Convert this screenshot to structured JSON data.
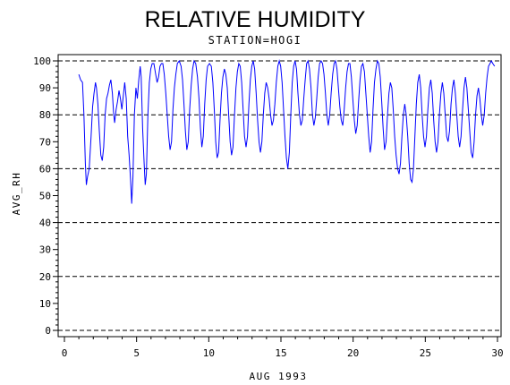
{
  "chart_data": {
    "type": "line",
    "title": "RELATIVE HUMIDITY",
    "subtitle": "STATION=HOGI",
    "xlabel": "AUG 1993",
    "ylabel": "AVG_RH",
    "xlim": [
      0,
      30
    ],
    "ylim": [
      0,
      100
    ],
    "xticks": [
      0,
      5,
      10,
      15,
      20,
      25,
      30
    ],
    "yticks": [
      0,
      10,
      20,
      30,
      40,
      50,
      60,
      70,
      80,
      90,
      100
    ],
    "reference_lines": [
      0,
      20,
      40,
      60,
      80,
      100
    ],
    "line_color": "#0000ff",
    "series": [
      {
        "values": [
          [
            1.0,
            95
          ],
          [
            1.12,
            93
          ],
          [
            1.25,
            92
          ],
          [
            1.35,
            80
          ],
          [
            1.45,
            62
          ],
          [
            1.52,
            54
          ],
          [
            1.6,
            57
          ],
          [
            1.72,
            60
          ],
          [
            1.85,
            72
          ],
          [
            1.95,
            83
          ],
          [
            2.05,
            88
          ],
          [
            2.15,
            92
          ],
          [
            2.22,
            90
          ],
          [
            2.32,
            84
          ],
          [
            2.42,
            74
          ],
          [
            2.52,
            65
          ],
          [
            2.62,
            63
          ],
          [
            2.72,
            68
          ],
          [
            2.82,
            80
          ],
          [
            2.92,
            86
          ],
          [
            3.02,
            88
          ],
          [
            3.12,
            91
          ],
          [
            3.22,
            93
          ],
          [
            3.32,
            88
          ],
          [
            3.4,
            81
          ],
          [
            3.48,
            77
          ],
          [
            3.58,
            82
          ],
          [
            3.68,
            85
          ],
          [
            3.78,
            89
          ],
          [
            3.88,
            86
          ],
          [
            3.98,
            82
          ],
          [
            4.08,
            87
          ],
          [
            4.18,
            92
          ],
          [
            4.28,
            86
          ],
          [
            4.38,
            72
          ],
          [
            4.48,
            65
          ],
          [
            4.58,
            56
          ],
          [
            4.66,
            47
          ],
          [
            4.75,
            57
          ],
          [
            4.85,
            80
          ],
          [
            4.95,
            90
          ],
          [
            5.05,
            86
          ],
          [
            5.15,
            93
          ],
          [
            5.25,
            98
          ],
          [
            5.32,
            94
          ],
          [
            5.42,
            75
          ],
          [
            5.52,
            62
          ],
          [
            5.6,
            54
          ],
          [
            5.68,
            58
          ],
          [
            5.78,
            80
          ],
          [
            5.88,
            92
          ],
          [
            5.98,
            97
          ],
          [
            6.08,
            99
          ],
          [
            6.2,
            99
          ],
          [
            6.32,
            95
          ],
          [
            6.42,
            92
          ],
          [
            6.52,
            94
          ],
          [
            6.62,
            98
          ],
          [
            6.72,
            99
          ],
          [
            6.82,
            99
          ],
          [
            6.92,
            95
          ],
          [
            7.02,
            88
          ],
          [
            7.12,
            80
          ],
          [
            7.22,
            72
          ],
          [
            7.32,
            67
          ],
          [
            7.42,
            70
          ],
          [
            7.52,
            82
          ],
          [
            7.62,
            90
          ],
          [
            7.72,
            95
          ],
          [
            7.82,
            99
          ],
          [
            7.95,
            100
          ],
          [
            8.08,
            98
          ],
          [
            8.18,
            93
          ],
          [
            8.28,
            84
          ],
          [
            8.38,
            74
          ],
          [
            8.48,
            67
          ],
          [
            8.58,
            70
          ],
          [
            8.68,
            82
          ],
          [
            8.78,
            91
          ],
          [
            8.88,
            97
          ],
          [
            8.98,
            100
          ],
          [
            9.1,
            99
          ],
          [
            9.22,
            94
          ],
          [
            9.32,
            86
          ],
          [
            9.42,
            75
          ],
          [
            9.52,
            68
          ],
          [
            9.62,
            72
          ],
          [
            9.72,
            84
          ],
          [
            9.82,
            93
          ],
          [
            9.92,
            98
          ],
          [
            10.05,
            99
          ],
          [
            10.18,
            98
          ],
          [
            10.28,
            92
          ],
          [
            10.38,
            82
          ],
          [
            10.48,
            70
          ],
          [
            10.58,
            64
          ],
          [
            10.68,
            66
          ],
          [
            10.78,
            78
          ],
          [
            10.88,
            88
          ],
          [
            10.98,
            94
          ],
          [
            11.08,
            97
          ],
          [
            11.18,
            95
          ],
          [
            11.28,
            90
          ],
          [
            11.38,
            80
          ],
          [
            11.48,
            70
          ],
          [
            11.58,
            65
          ],
          [
            11.68,
            68
          ],
          [
            11.78,
            80
          ],
          [
            11.88,
            90
          ],
          [
            11.98,
            96
          ],
          [
            12.08,
            99
          ],
          [
            12.18,
            98
          ],
          [
            12.28,
            92
          ],
          [
            12.38,
            82
          ],
          [
            12.48,
            72
          ],
          [
            12.58,
            68
          ],
          [
            12.68,
            72
          ],
          [
            12.78,
            84
          ],
          [
            12.88,
            93
          ],
          [
            12.98,
            98
          ],
          [
            13.08,
            100
          ],
          [
            13.18,
            97
          ],
          [
            13.28,
            88
          ],
          [
            13.38,
            78
          ],
          [
            13.48,
            70
          ],
          [
            13.58,
            66
          ],
          [
            13.68,
            70
          ],
          [
            13.78,
            80
          ],
          [
            13.88,
            88
          ],
          [
            13.98,
            92
          ],
          [
            14.08,
            90
          ],
          [
            14.18,
            86
          ],
          [
            14.28,
            80
          ],
          [
            14.38,
            76
          ],
          [
            14.48,
            78
          ],
          [
            14.58,
            84
          ],
          [
            14.68,
            92
          ],
          [
            14.78,
            98
          ],
          [
            14.88,
            100
          ],
          [
            14.98,
            98
          ],
          [
            15.08,
            92
          ],
          [
            15.18,
            82
          ],
          [
            15.28,
            72
          ],
          [
            15.38,
            64
          ],
          [
            15.48,
            60
          ],
          [
            15.58,
            66
          ],
          [
            15.68,
            80
          ],
          [
            15.78,
            92
          ],
          [
            15.88,
            98
          ],
          [
            15.98,
            100
          ],
          [
            16.08,
            97
          ],
          [
            16.18,
            88
          ],
          [
            16.28,
            80
          ],
          [
            16.38,
            76
          ],
          [
            16.48,
            78
          ],
          [
            16.58,
            86
          ],
          [
            16.68,
            93
          ],
          [
            16.78,
            99
          ],
          [
            16.88,
            100
          ],
          [
            16.98,
            97
          ],
          [
            17.08,
            90
          ],
          [
            17.18,
            80
          ],
          [
            17.28,
            76
          ],
          [
            17.38,
            79
          ],
          [
            17.48,
            86
          ],
          [
            17.58,
            94
          ],
          [
            17.68,
            99
          ],
          [
            17.78,
            100
          ],
          [
            17.88,
            99
          ],
          [
            17.98,
            95
          ],
          [
            18.08,
            88
          ],
          [
            18.18,
            80
          ],
          [
            18.28,
            76
          ],
          [
            18.38,
            80
          ],
          [
            18.48,
            88
          ],
          [
            18.58,
            95
          ],
          [
            18.68,
            99
          ],
          [
            18.78,
            100
          ],
          [
            18.88,
            97
          ],
          [
            18.98,
            90
          ],
          [
            19.08,
            83
          ],
          [
            19.18,
            78
          ],
          [
            19.28,
            76
          ],
          [
            19.38,
            82
          ],
          [
            19.48,
            90
          ],
          [
            19.58,
            96
          ],
          [
            19.68,
            99
          ],
          [
            19.78,
            99
          ],
          [
            19.88,
            94
          ],
          [
            19.98,
            86
          ],
          [
            20.08,
            78
          ],
          [
            20.18,
            73
          ],
          [
            20.28,
            76
          ],
          [
            20.38,
            85
          ],
          [
            20.48,
            93
          ],
          [
            20.58,
            98
          ],
          [
            20.68,
            99
          ],
          [
            20.78,
            96
          ],
          [
            20.88,
            88
          ],
          [
            20.98,
            80
          ],
          [
            21.08,
            72
          ],
          [
            21.18,
            66
          ],
          [
            21.28,
            70
          ],
          [
            21.38,
            82
          ],
          [
            21.48,
            92
          ],
          [
            21.58,
            97
          ],
          [
            21.68,
            100
          ],
          [
            21.78,
            99
          ],
          [
            21.88,
            94
          ],
          [
            21.98,
            85
          ],
          [
            22.08,
            75
          ],
          [
            22.18,
            67
          ],
          [
            22.28,
            70
          ],
          [
            22.38,
            80
          ],
          [
            22.48,
            88
          ],
          [
            22.58,
            92
          ],
          [
            22.68,
            90
          ],
          [
            22.78,
            82
          ],
          [
            22.88,
            72
          ],
          [
            22.98,
            65
          ],
          [
            23.08,
            60
          ],
          [
            23.18,
            58
          ],
          [
            23.28,
            62
          ],
          [
            23.38,
            72
          ],
          [
            23.48,
            80
          ],
          [
            23.58,
            84
          ],
          [
            23.68,
            80
          ],
          [
            23.78,
            72
          ],
          [
            23.88,
            62
          ],
          [
            23.98,
            56
          ],
          [
            24.08,
            55
          ],
          [
            24.18,
            60
          ],
          [
            24.28,
            72
          ],
          [
            24.38,
            84
          ],
          [
            24.48,
            92
          ],
          [
            24.58,
            95
          ],
          [
            24.68,
            90
          ],
          [
            24.78,
            80
          ],
          [
            24.88,
            72
          ],
          [
            24.98,
            68
          ],
          [
            25.08,
            72
          ],
          [
            25.18,
            82
          ],
          [
            25.28,
            90
          ],
          [
            25.38,
            93
          ],
          [
            25.48,
            88
          ],
          [
            25.58,
            78
          ],
          [
            25.68,
            70
          ],
          [
            25.78,
            66
          ],
          [
            25.88,
            70
          ],
          [
            25.98,
            80
          ],
          [
            26.08,
            88
          ],
          [
            26.18,
            92
          ],
          [
            26.28,
            88
          ],
          [
            26.38,
            80
          ],
          [
            26.48,
            72
          ],
          [
            26.58,
            70
          ],
          [
            26.68,
            74
          ],
          [
            26.78,
            84
          ],
          [
            26.88,
            90
          ],
          [
            26.98,
            93
          ],
          [
            27.08,
            88
          ],
          [
            27.18,
            80
          ],
          [
            27.28,
            72
          ],
          [
            27.38,
            68
          ],
          [
            27.48,
            72
          ],
          [
            27.58,
            82
          ],
          [
            27.68,
            90
          ],
          [
            27.78,
            94
          ],
          [
            27.88,
            90
          ],
          [
            27.98,
            82
          ],
          [
            28.08,
            74
          ],
          [
            28.18,
            66
          ],
          [
            28.28,
            64
          ],
          [
            28.38,
            70
          ],
          [
            28.48,
            80
          ],
          [
            28.58,
            87
          ],
          [
            28.68,
            90
          ],
          [
            28.78,
            86
          ],
          [
            28.88,
            80
          ],
          [
            28.98,
            76
          ],
          [
            29.08,
            80
          ],
          [
            29.18,
            88
          ],
          [
            29.28,
            94
          ],
          [
            29.38,
            98
          ],
          [
            29.48,
            99
          ],
          [
            29.58,
            100
          ],
          [
            29.68,
            99
          ],
          [
            29.8,
            98
          ]
        ]
      }
    ]
  }
}
